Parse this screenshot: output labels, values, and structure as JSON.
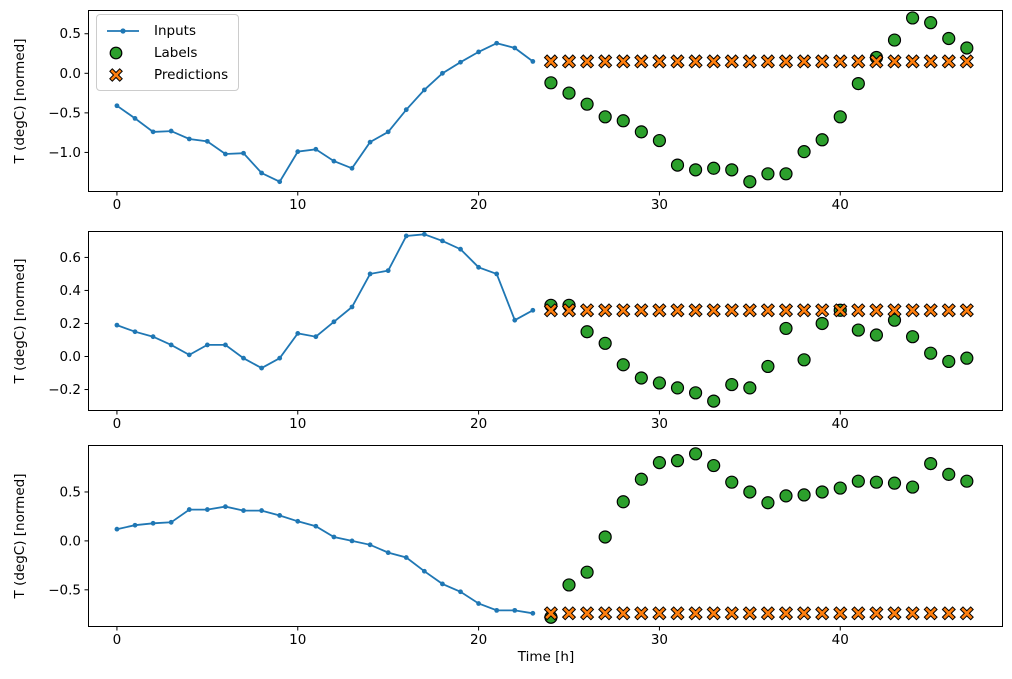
{
  "figure": {
    "xlabel": "Time [h]",
    "ylabel": "T (degC) [normed]",
    "background": "#ffffff"
  },
  "legend": {
    "items": [
      {
        "label": "Inputs",
        "marker": "line-dot",
        "color": "#1f77b4"
      },
      {
        "label": "Labels",
        "marker": "circle",
        "color": "#2ca02c"
      },
      {
        "label": "Predictions",
        "marker": "X",
        "color": "#ff7f0e"
      }
    ]
  },
  "colors": {
    "inputs": "#1f77b4",
    "labels": "#2ca02c",
    "predictions": "#ff7f0e",
    "marker_edge": "#000000",
    "axis": "#000000"
  },
  "chart_data": [
    {
      "type": "line",
      "name": "top",
      "ylabel": "T (degC) [normed]",
      "xlabel": "",
      "grid": false,
      "xlim": [
        -1.6,
        49.0
      ],
      "ylim": [
        -1.5,
        0.8
      ],
      "x_ticks": [
        0,
        10,
        20,
        30,
        40
      ],
      "y_ticks": [
        0.5,
        0.0,
        -0.5,
        -1.0
      ],
      "series": [
        {
          "name": "Inputs",
          "type": "line+marker",
          "x": [
            0,
            1,
            2,
            3,
            4,
            5,
            6,
            7,
            8,
            9,
            10,
            11,
            12,
            13,
            14,
            15,
            16,
            17,
            18,
            19,
            20,
            21,
            22,
            23
          ],
          "y": [
            -0.41,
            -0.57,
            -0.74,
            -0.73,
            -0.83,
            -0.86,
            -1.02,
            -1.01,
            -1.26,
            -1.37,
            -0.99,
            -0.96,
            -1.11,
            -1.2,
            -0.87,
            -0.74,
            -0.46,
            -0.21,
            0.0,
            0.14,
            0.27,
            0.38,
            0.32,
            0.15
          ]
        },
        {
          "name": "Labels",
          "type": "scatter",
          "marker": "circle",
          "x": [
            24,
            25,
            26,
            27,
            28,
            29,
            30,
            31,
            32,
            33,
            34,
            35,
            36,
            37,
            38,
            39,
            40,
            41,
            42,
            43,
            44,
            45,
            46,
            47
          ],
          "y": [
            -0.12,
            -0.25,
            -0.39,
            -0.55,
            -0.6,
            -0.74,
            -0.85,
            -1.16,
            -1.22,
            -1.2,
            -1.22,
            -1.37,
            -1.27,
            -1.27,
            -0.99,
            -0.84,
            -0.55,
            -0.13,
            0.2,
            0.42,
            0.7,
            0.64,
            0.44,
            0.32
          ]
        },
        {
          "name": "Predictions",
          "type": "scatter",
          "marker": "X",
          "x": [
            24,
            25,
            26,
            27,
            28,
            29,
            30,
            31,
            32,
            33,
            34,
            35,
            36,
            37,
            38,
            39,
            40,
            41,
            42,
            43,
            44,
            45,
            46,
            47
          ],
          "y": [
            0.15,
            0.15,
            0.15,
            0.15,
            0.15,
            0.15,
            0.15,
            0.15,
            0.15,
            0.15,
            0.15,
            0.15,
            0.15,
            0.15,
            0.15,
            0.15,
            0.15,
            0.15,
            0.15,
            0.15,
            0.15,
            0.15,
            0.15,
            0.15
          ]
        }
      ]
    },
    {
      "type": "line",
      "name": "middle",
      "ylabel": "T (degC) [normed]",
      "xlabel": "",
      "grid": false,
      "xlim": [
        -1.6,
        49.0
      ],
      "ylim": [
        -0.33,
        0.76
      ],
      "x_ticks": [
        0,
        10,
        20,
        30,
        40
      ],
      "y_ticks": [
        0.6,
        0.4,
        0.2,
        0.0,
        -0.2
      ],
      "series": [
        {
          "name": "Inputs",
          "type": "line+marker",
          "x": [
            0,
            1,
            2,
            3,
            4,
            5,
            6,
            7,
            8,
            9,
            10,
            11,
            12,
            13,
            14,
            15,
            16,
            17,
            18,
            19,
            20,
            21,
            22,
            23
          ],
          "y": [
            0.19,
            0.15,
            0.12,
            0.07,
            0.01,
            0.07,
            0.07,
            -0.01,
            -0.07,
            -0.01,
            0.14,
            0.12,
            0.21,
            0.3,
            0.5,
            0.52,
            0.73,
            0.74,
            0.7,
            0.65,
            0.54,
            0.5,
            0.22,
            0.28
          ]
        },
        {
          "name": "Labels",
          "type": "scatter",
          "marker": "circle",
          "x": [
            24,
            25,
            26,
            27,
            28,
            29,
            30,
            31,
            32,
            33,
            34,
            35,
            36,
            37,
            38,
            39,
            40,
            41,
            42,
            43,
            44,
            45,
            46,
            47
          ],
          "y": [
            0.31,
            0.31,
            0.15,
            0.08,
            -0.05,
            -0.13,
            -0.16,
            -0.19,
            -0.22,
            -0.27,
            -0.17,
            -0.19,
            -0.06,
            0.17,
            -0.02,
            0.2,
            0.28,
            0.16,
            0.13,
            0.22,
            0.12,
            0.02,
            -0.03,
            -0.01
          ]
        },
        {
          "name": "Predictions",
          "type": "scatter",
          "marker": "X",
          "x": [
            24,
            25,
            26,
            27,
            28,
            29,
            30,
            31,
            32,
            33,
            34,
            35,
            36,
            37,
            38,
            39,
            40,
            41,
            42,
            43,
            44,
            45,
            46,
            47
          ],
          "y": [
            0.28,
            0.28,
            0.28,
            0.28,
            0.28,
            0.28,
            0.28,
            0.28,
            0.28,
            0.28,
            0.28,
            0.28,
            0.28,
            0.28,
            0.28,
            0.28,
            0.28,
            0.28,
            0.28,
            0.28,
            0.28,
            0.28,
            0.28,
            0.28
          ]
        }
      ]
    },
    {
      "type": "line",
      "name": "bottom",
      "ylabel": "T (degC) [normed]",
      "xlabel": "Time [h]",
      "grid": false,
      "xlim": [
        -1.6,
        49.0
      ],
      "ylim": [
        -0.88,
        0.98
      ],
      "x_ticks": [
        0,
        10,
        20,
        30,
        40
      ],
      "y_ticks": [
        0.5,
        0.0,
        -0.5
      ],
      "series": [
        {
          "name": "Inputs",
          "type": "line+marker",
          "x": [
            0,
            1,
            2,
            3,
            4,
            5,
            6,
            7,
            8,
            9,
            10,
            11,
            12,
            13,
            14,
            15,
            16,
            17,
            18,
            19,
            20,
            21,
            22,
            23
          ],
          "y": [
            0.12,
            0.16,
            0.18,
            0.19,
            0.32,
            0.32,
            0.35,
            0.31,
            0.31,
            0.26,
            0.2,
            0.15,
            0.04,
            0.0,
            -0.04,
            -0.12,
            -0.17,
            -0.31,
            -0.44,
            -0.52,
            -0.64,
            -0.71,
            -0.71,
            -0.74
          ]
        },
        {
          "name": "Labels",
          "type": "scatter",
          "marker": "circle",
          "x": [
            24,
            25,
            26,
            27,
            28,
            29,
            30,
            31,
            32,
            33,
            34,
            35,
            36,
            37,
            38,
            39,
            40,
            41,
            42,
            43,
            44,
            45,
            46,
            47
          ],
          "y": [
            -0.78,
            -0.45,
            -0.32,
            0.04,
            0.4,
            0.63,
            0.8,
            0.82,
            0.89,
            0.77,
            0.6,
            0.5,
            0.39,
            0.46,
            0.47,
            0.5,
            0.54,
            0.61,
            0.6,
            0.59,
            0.55,
            0.79,
            0.68,
            0.61
          ]
        },
        {
          "name": "Predictions",
          "type": "scatter",
          "marker": "X",
          "x": [
            24,
            25,
            26,
            27,
            28,
            29,
            30,
            31,
            32,
            33,
            34,
            35,
            36,
            37,
            38,
            39,
            40,
            41,
            42,
            43,
            44,
            45,
            46,
            47
          ],
          "y": [
            -0.74,
            -0.74,
            -0.74,
            -0.74,
            -0.74,
            -0.74,
            -0.74,
            -0.74,
            -0.74,
            -0.74,
            -0.74,
            -0.74,
            -0.74,
            -0.74,
            -0.74,
            -0.74,
            -0.74,
            -0.74,
            -0.74,
            -0.74,
            -0.74,
            -0.74,
            -0.74,
            -0.74
          ]
        }
      ]
    }
  ]
}
